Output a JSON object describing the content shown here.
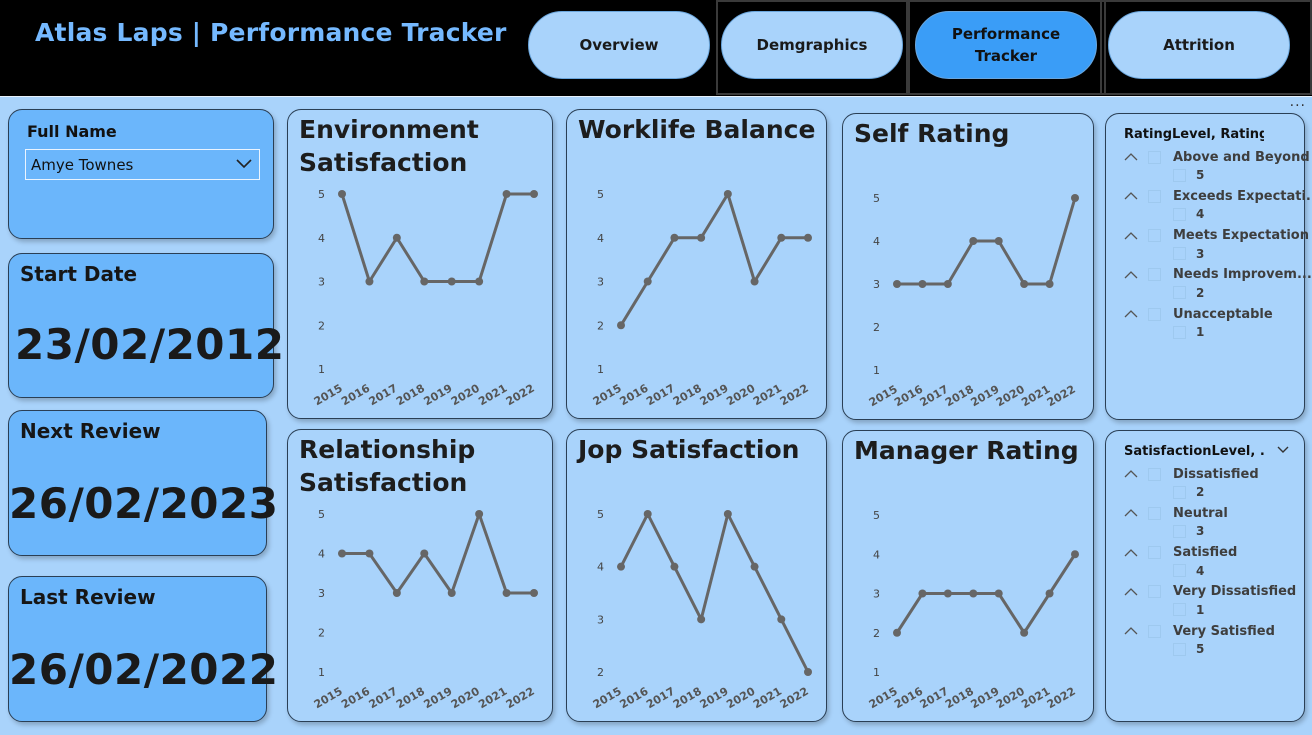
{
  "header": {
    "title": "Atlas Laps | Performance Tracker",
    "nav": [
      {
        "label": "Overview",
        "active": false
      },
      {
        "label": "Demgraphics",
        "active": false
      },
      {
        "label": "Performance Tracker",
        "active": true
      },
      {
        "label": "Attrition",
        "active": false
      }
    ]
  },
  "slicer": {
    "label": "Full Name",
    "value": "Amye Townes"
  },
  "cards": {
    "start": {
      "label": "Start Date",
      "value": "23/02/2012"
    },
    "next": {
      "label": "Next Review",
      "value": "26/02/2023"
    },
    "last": {
      "label": "Last Review",
      "value": "26/02/2022"
    }
  },
  "chart_data": [
    {
      "type": "line",
      "title": "Environment Satisfaction",
      "x": [
        "2015",
        "2016",
        "2017",
        "2018",
        "2019",
        "2020",
        "2021",
        "2022"
      ],
      "values": [
        5,
        3,
        4,
        3,
        3,
        3,
        5,
        5
      ],
      "ylim": [
        1,
        5
      ],
      "yticks": [
        "1",
        "2",
        "3",
        "4",
        "5"
      ]
    },
    {
      "type": "line",
      "title": "Worklife Balance",
      "x": [
        "2015",
        "2016",
        "2017",
        "2018",
        "2019",
        "2020",
        "2021",
        "2022"
      ],
      "values": [
        2,
        3,
        4,
        4,
        5,
        3,
        4,
        4
      ],
      "ylim": [
        1,
        5
      ],
      "yticks": [
        "1",
        "2",
        "3",
        "4",
        "5"
      ]
    },
    {
      "type": "line",
      "title": "Self Rating",
      "x": [
        "2015",
        "2016",
        "2017",
        "2018",
        "2019",
        "2020",
        "2021",
        "2022"
      ],
      "values": [
        3,
        3,
        3,
        4,
        4,
        3,
        3,
        5
      ],
      "ylim": [
        1,
        5
      ],
      "yticks": [
        "1",
        "2",
        "3",
        "4",
        "5"
      ]
    },
    {
      "type": "line",
      "title": "Relationship Satisfaction",
      "x": [
        "2015",
        "2016",
        "2017",
        "2018",
        "2019",
        "2020",
        "2021",
        "2022"
      ],
      "values": [
        4,
        4,
        3,
        4,
        3,
        5,
        3,
        3
      ],
      "ylim": [
        1,
        5
      ],
      "yticks": [
        "1",
        "2",
        "3",
        "4",
        "5"
      ]
    },
    {
      "type": "line",
      "title": "Jop Satisfaction",
      "x": [
        "2015",
        "2016",
        "2017",
        "2018",
        "2019",
        "2020",
        "2021",
        "2022"
      ],
      "values": [
        4,
        5,
        4,
        3,
        5,
        4,
        3,
        2
      ],
      "ylim": [
        2,
        5
      ],
      "yticks": [
        "2",
        "3",
        "4",
        "5"
      ]
    },
    {
      "type": "line",
      "title": "Manager Rating",
      "x": [
        "2015",
        "2016",
        "2017",
        "2018",
        "2019",
        "2020",
        "2021",
        "2022"
      ],
      "values": [
        2,
        3,
        3,
        3,
        3,
        2,
        3,
        4
      ],
      "ylim": [
        1,
        5
      ],
      "yticks": [
        "1",
        "2",
        "3",
        "4",
        "5"
      ]
    }
  ],
  "filters": {
    "rating": {
      "title": "RatingLevel, RatingID",
      "items": [
        {
          "label": "Above and Beyond",
          "child": "5"
        },
        {
          "label": "Exceeds Expectati...",
          "child": "4"
        },
        {
          "label": "Meets Expectation",
          "child": "3"
        },
        {
          "label": "Needs Improvem...",
          "child": "2"
        },
        {
          "label": "Unacceptable",
          "child": "1"
        }
      ]
    },
    "satisfaction": {
      "title": "SatisfactionLevel, ...",
      "items": [
        {
          "label": "Dissatisfied",
          "child": "2"
        },
        {
          "label": "Neutral",
          "child": "3"
        },
        {
          "label": "Satisfied",
          "child": "4"
        },
        {
          "label": "Very Dissatisfied",
          "child": "1"
        },
        {
          "label": "Very Satisfied",
          "child": "5"
        }
      ]
    }
  },
  "colors": {
    "accent": "#75b9ff",
    "active_nav": "#3a9df7",
    "card": "#6bb6fb",
    "background": "#a9d3fb",
    "line": "#666666"
  },
  "icons": {
    "more": "more-options-icon",
    "chevron": "chevron-down-icon",
    "tree_toggle": "chevron-up-icon"
  }
}
